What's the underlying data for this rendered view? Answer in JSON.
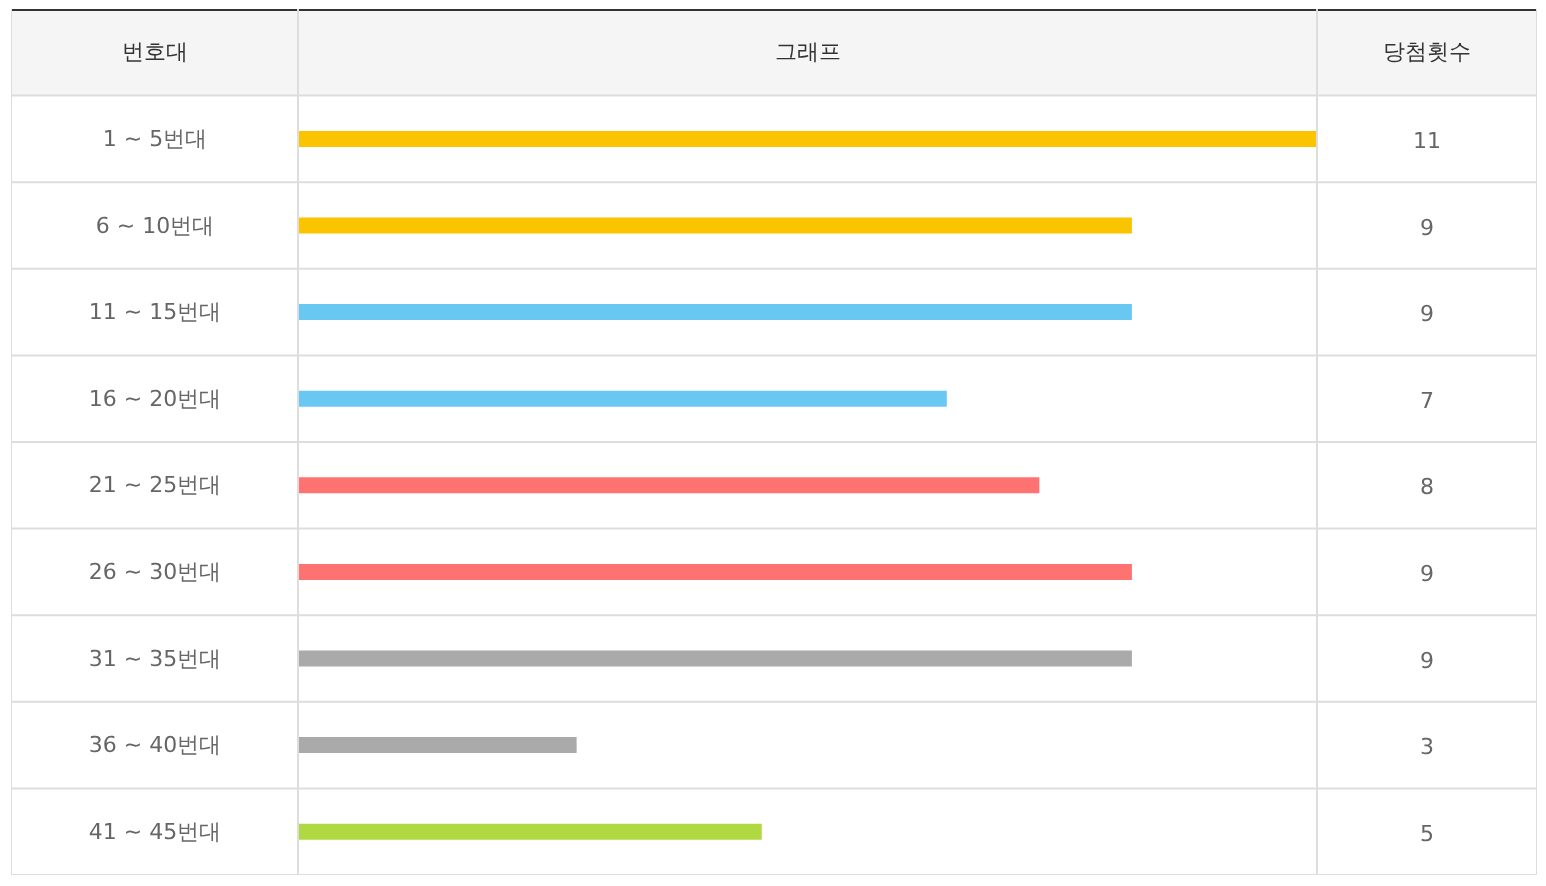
{
  "chart_data": {
    "type": "bar",
    "orientation": "horizontal",
    "ylabel": "번호대",
    "xlabel": "그래프",
    "annotations": [
      "당첨횟수"
    ],
    "categories": [
      "1 ~ 5번대",
      "6 ~ 10번대",
      "11 ~ 15번대",
      "16 ~ 20번대",
      "21 ~ 25번대",
      "26 ~ 30번대",
      "31 ~ 35번대",
      "36 ~ 40번대",
      "41 ~ 45번대"
    ],
    "values": [
      11,
      9,
      9,
      7,
      8,
      9,
      9,
      3,
      5
    ],
    "colors": [
      "#fbc400",
      "#fbc400",
      "#69c8f2",
      "#69c8f2",
      "#ff7272",
      "#ff7272",
      "#aaaaaa",
      "#aaaaaa",
      "#b0d840"
    ],
    "xlim": [
      0,
      11
    ],
    "tick_labels": "y",
    "data_labels": true
  }
}
